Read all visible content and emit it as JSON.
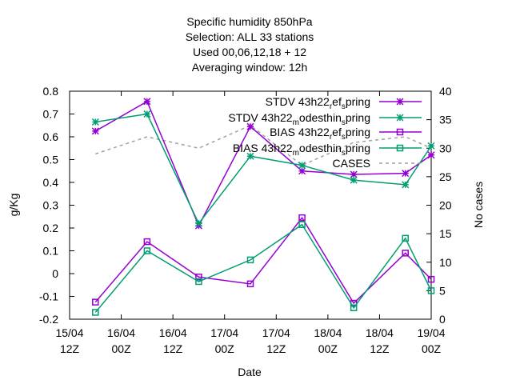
{
  "chart_data": {
    "type": "line",
    "title_lines": [
      "Specific humidity 850hPa",
      "Selection: ALL      33 stations",
      "Used  00,06,12,18  + 12",
      "Averaging window: 12h"
    ],
    "xlabel": "Date",
    "ylabel": "g/Kg",
    "y2label": "No cases",
    "x_ticks": [
      {
        "x": 0,
        "line1": "15/04",
        "line2": "12Z"
      },
      {
        "x": 1,
        "line1": "16/04",
        "line2": "00Z"
      },
      {
        "x": 2,
        "line1": "16/04",
        "line2": "12Z"
      },
      {
        "x": 3,
        "line1": "17/04",
        "line2": "00Z"
      },
      {
        "x": 4,
        "line1": "17/04",
        "line2": "12Z"
      },
      {
        "x": 5,
        "line1": "18/04",
        "line2": "00Z"
      },
      {
        "x": 6,
        "line1": "18/04",
        "line2": "12Z"
      },
      {
        "x": 7,
        "line1": "19/04",
        "line2": "00Z"
      }
    ],
    "xlim": [
      0,
      7
    ],
    "ylim": [
      -0.2,
      0.8
    ],
    "y_ticks": [
      "-0.2",
      "-0.1",
      "0",
      "0.1",
      "0.2",
      "0.3",
      "0.4",
      "0.5",
      "0.6",
      "0.7",
      "0.8"
    ],
    "y2lim": [
      0,
      40
    ],
    "y2_ticks": [
      "0",
      "5",
      "10",
      "15",
      "20",
      "25",
      "30",
      "35",
      "40"
    ],
    "x": [
      0.5,
      1.5,
      2.5,
      3.5,
      4.5,
      5.5,
      6.5,
      7.0
    ],
    "legend_position": "top-right",
    "series": [
      {
        "name": "STDV 43h22_ref_spring",
        "legend_parts": [
          "STDV 43h22",
          "r",
          "ef",
          "s",
          "pring"
        ],
        "axis": "y",
        "color": "#9400d3",
        "marker": "star",
        "dash": "",
        "values": [
          0.625,
          0.755,
          0.21,
          0.645,
          0.45,
          0.435,
          0.44,
          0.52
        ]
      },
      {
        "name": "STDV 43h22_modesthin_spring",
        "legend_parts": [
          "STDV 43h22",
          "m",
          "odesthin",
          "s",
          "pring"
        ],
        "axis": "y",
        "color": "#009e73",
        "marker": "star",
        "dash": "",
        "values": [
          0.665,
          0.7,
          0.22,
          0.515,
          0.475,
          0.41,
          0.39,
          0.56
        ]
      },
      {
        "name": "BIAS 43h22_ref_spring",
        "legend_parts": [
          "BIAS 43h22",
          "r",
          "ef",
          "s",
          "pring"
        ],
        "axis": "y",
        "color": "#9400d3",
        "marker": "square",
        "dash": "",
        "values": [
          -0.125,
          0.14,
          -0.015,
          -0.045,
          0.245,
          -0.13,
          0.09,
          -0.025
        ]
      },
      {
        "name": "BIAS 43h22_modesthin_spring",
        "legend_parts": [
          "BIAS 43h22",
          "m",
          "odesthin",
          "s",
          "pring"
        ],
        "axis": "y",
        "color": "#009e73",
        "marker": "square",
        "dash": "",
        "values": [
          -0.17,
          0.1,
          -0.035,
          0.06,
          0.215,
          -0.15,
          0.155,
          -0.075
        ]
      },
      {
        "name": "CASES",
        "legend_parts": [
          "CASES",
          "",
          "",
          "",
          ""
        ],
        "axis": "y2",
        "color": "#a0a0a0",
        "marker": "none",
        "dash": "4,4",
        "values": [
          29,
          32,
          30,
          34,
          27,
          31,
          32,
          30
        ]
      }
    ]
  }
}
